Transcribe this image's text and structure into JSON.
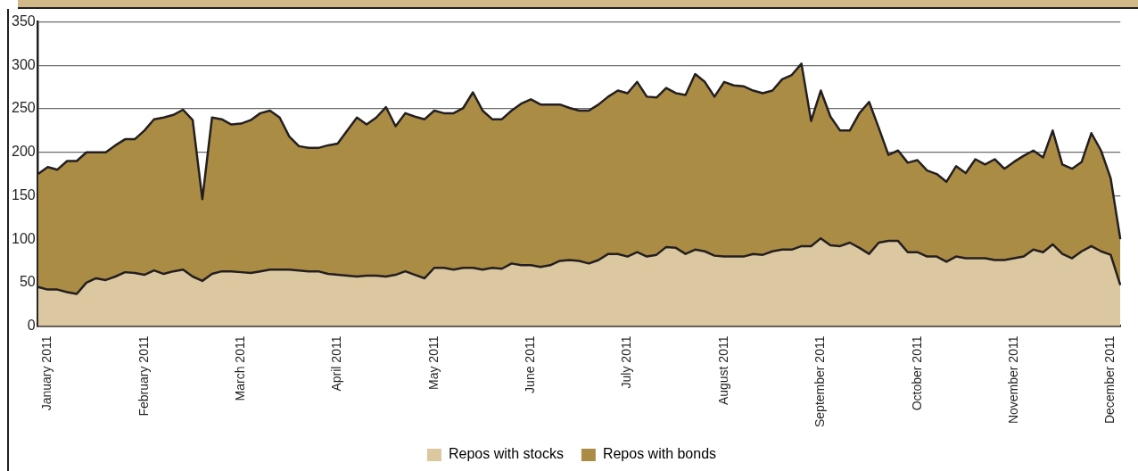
{
  "chart_data": {
    "type": "area",
    "stacked": true,
    "categories": [
      null,
      "January 2011",
      null,
      null,
      null,
      null,
      null,
      null,
      null,
      null,
      null,
      "February 2011",
      null,
      null,
      null,
      null,
      null,
      null,
      null,
      null,
      null,
      "March 2011",
      null,
      null,
      null,
      null,
      null,
      null,
      null,
      null,
      null,
      "April 2011",
      null,
      null,
      null,
      null,
      null,
      null,
      null,
      null,
      null,
      "May 2011",
      null,
      null,
      null,
      null,
      null,
      null,
      null,
      null,
      null,
      "June 2011",
      null,
      null,
      null,
      null,
      null,
      null,
      null,
      null,
      null,
      "July 2011",
      null,
      null,
      null,
      null,
      null,
      null,
      null,
      null,
      null,
      "August 2011",
      null,
      null,
      null,
      null,
      null,
      null,
      null,
      null,
      null,
      "September 2011",
      null,
      null,
      null,
      null,
      null,
      null,
      null,
      null,
      null,
      "October 2011",
      null,
      null,
      null,
      null,
      null,
      null,
      null,
      null,
      null,
      "November 2011",
      null,
      null,
      null,
      null,
      null,
      null,
      null,
      null,
      null,
      "December 2011",
      null
    ],
    "series": [
      {
        "name": "Repos with stocks",
        "color": "#dbc7a0",
        "values": [
          45,
          42,
          42,
          39,
          37,
          50,
          55,
          53,
          57,
          62,
          61,
          59,
          64,
          60,
          63,
          65,
          57,
          52,
          60,
          63,
          63,
          62,
          61,
          63,
          65,
          65,
          65,
          64,
          63,
          63,
          60,
          59,
          58,
          57,
          58,
          58,
          57,
          59,
          63,
          59,
          55,
          67,
          67,
          65,
          67,
          67,
          65,
          67,
          66,
          72,
          70,
          70,
          68,
          70,
          75,
          76,
          75,
          72,
          76,
          83,
          83,
          80,
          85,
          80,
          82,
          91,
          90,
          83,
          88,
          86,
          81,
          80,
          80,
          80,
          83,
          82,
          86,
          88,
          88,
          92,
          92,
          101,
          93,
          92,
          96,
          90,
          83,
          96,
          98,
          98,
          85,
          85,
          80,
          80,
          74,
          80,
          78,
          78,
          78,
          76,
          76,
          78,
          80,
          88,
          85,
          94,
          83,
          78,
          86,
          92,
          86,
          82,
          47
        ]
      },
      {
        "name": "Repos with bonds",
        "color": "#ab8c45",
        "values": [
          130,
          141,
          138,
          151,
          153,
          150,
          145,
          147,
          151,
          153,
          154,
          166,
          174,
          180,
          180,
          184,
          180,
          94,
          180,
          175,
          169,
          171,
          176,
          182,
          183,
          175,
          153,
          143,
          142,
          142,
          148,
          151,
          167,
          183,
          174,
          182,
          195,
          171,
          182,
          182,
          183,
          181,
          178,
          180,
          184,
          202,
          183,
          171,
          172,
          176,
          186,
          191,
          187,
          185,
          180,
          175,
          173,
          176,
          179,
          181,
          188,
          188,
          196,
          184,
          181,
          183,
          178,
          183,
          202,
          195,
          183,
          201,
          197,
          196,
          188,
          186,
          185,
          196,
          201,
          210,
          144,
          170,
          148,
          133,
          129,
          155,
          175,
          132,
          99,
          104,
          103,
          106,
          99,
          95,
          92,
          104,
          98,
          114,
          108,
          116,
          105,
          111,
          116,
          114,
          109,
          131,
          103,
          103,
          103,
          130,
          116,
          88,
          53
        ]
      }
    ],
    "ylim": [
      0,
      350
    ],
    "yticks": [
      0,
      50,
      100,
      150,
      200,
      250,
      300,
      350
    ],
    "grid": "y",
    "legend": "bottom",
    "line_style": "solid",
    "marker": "none"
  }
}
